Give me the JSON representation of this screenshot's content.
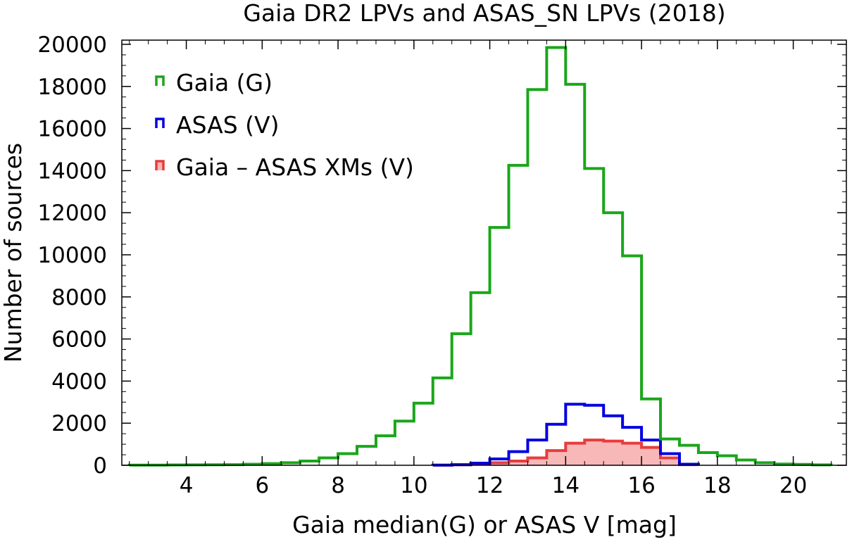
{
  "chart_data": {
    "type": "histogram",
    "title": "Gaia DR2 LPVs  and  ASAS_SN LPVs (2018)",
    "xlabel": "Gaia median(G)  or  ASAS V  [mag]",
    "ylabel": "Number of sources",
    "xlim": [
      2.3,
      21.4
    ],
    "ylim": [
      0,
      20200
    ],
    "xticks": [
      4,
      6,
      8,
      10,
      12,
      14,
      16,
      18,
      20
    ],
    "yticks": [
      0,
      2000,
      4000,
      6000,
      8000,
      10000,
      12000,
      14000,
      16000,
      18000,
      20000
    ],
    "bin_width": 0.5,
    "legend_position": "top-left",
    "series": [
      {
        "name": "Gaia (G)",
        "color": "#1aa61a",
        "style": "step",
        "bin_starts": [
          2.5,
          3.0,
          3.5,
          4.0,
          4.5,
          5.0,
          5.5,
          6.0,
          6.5,
          7.0,
          7.5,
          8.0,
          8.5,
          9.0,
          9.5,
          10.0,
          10.5,
          11.0,
          11.5,
          12.0,
          12.5,
          13.0,
          13.5,
          14.0,
          14.5,
          15.0,
          15.5,
          16.0,
          16.5,
          17.0,
          17.5,
          18.0,
          18.5,
          19.0,
          19.5,
          20.0,
          20.5
        ],
        "values": [
          10,
          10,
          15,
          20,
          25,
          30,
          50,
          80,
          120,
          200,
          350,
          550,
          900,
          1400,
          2100,
          2950,
          4150,
          6250,
          8200,
          11300,
          14250,
          17850,
          19850,
          18100,
          14100,
          12000,
          9950,
          3150,
          1250,
          950,
          600,
          450,
          250,
          120,
          60,
          40,
          20
        ]
      },
      {
        "name": "ASAS (V)",
        "color": "#0000e0",
        "style": "step",
        "bin_starts": [
          10.5,
          11.0,
          11.5,
          12.0,
          12.5,
          13.0,
          13.5,
          14.0,
          14.5,
          15.0,
          15.5,
          16.0,
          16.5,
          17.0
        ],
        "values": [
          10,
          30,
          100,
          300,
          650,
          1200,
          1950,
          2900,
          2850,
          2350,
          1800,
          1200,
          550,
          50
        ]
      },
      {
        "name": "Gaia – ASAS XMs (V)",
        "color": "#e83c3c",
        "fill": "#f8b8b8",
        "style": "filled-step",
        "bin_starts": [
          10.5,
          11.0,
          11.5,
          12.0,
          12.5,
          13.0,
          13.5,
          14.0,
          14.5,
          15.0,
          15.5,
          16.0,
          16.5,
          17.0
        ],
        "values": [
          5,
          20,
          50,
          120,
          200,
          350,
          700,
          1050,
          1200,
          1150,
          1050,
          850,
          350,
          30
        ]
      }
    ]
  }
}
